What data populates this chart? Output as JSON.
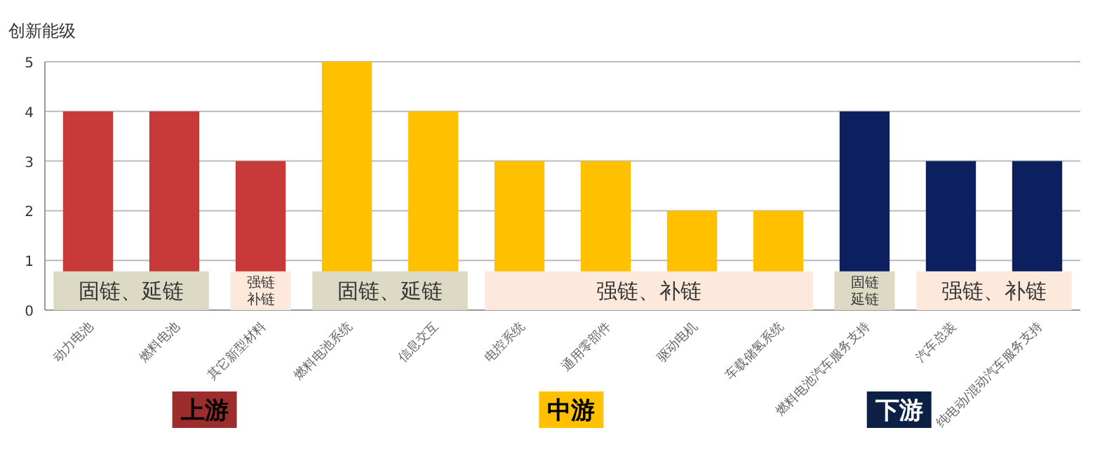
{
  "chart_data": {
    "type": "bar",
    "ylabel": "创新能级",
    "categories": [
      "动力电池",
      "燃料电池",
      "其它新型材料",
      "燃料电池系统",
      "信息交互",
      "电控系统",
      "通用零部件",
      "驱动电机",
      "车载储氢系统",
      "燃料电池汽车服务支持",
      "汽车总装",
      "纯电动/混动汽车服务支持"
    ],
    "values": [
      4,
      4,
      3,
      5,
      4,
      3,
      3,
      2,
      2,
      4,
      3,
      3
    ],
    "colors": [
      "#c83a3a",
      "#c83a3a",
      "#c83a3a",
      "#ffc000",
      "#ffc000",
      "#ffc000",
      "#ffc000",
      "#ffc000",
      "#ffc000",
      "#0c1f5e",
      "#0c1f5e",
      "#0c1f5e"
    ],
    "ylim": [
      0,
      5
    ],
    "yticks": [
      0,
      1,
      2,
      3,
      4,
      5
    ],
    "grid": "y",
    "annotations": [
      "固链、延链",
      "强链补链",
      "固链、延链",
      "强链、补链",
      "固链延链",
      "强链、补链",
      "上游",
      "中游",
      "下游"
    ]
  }
}
